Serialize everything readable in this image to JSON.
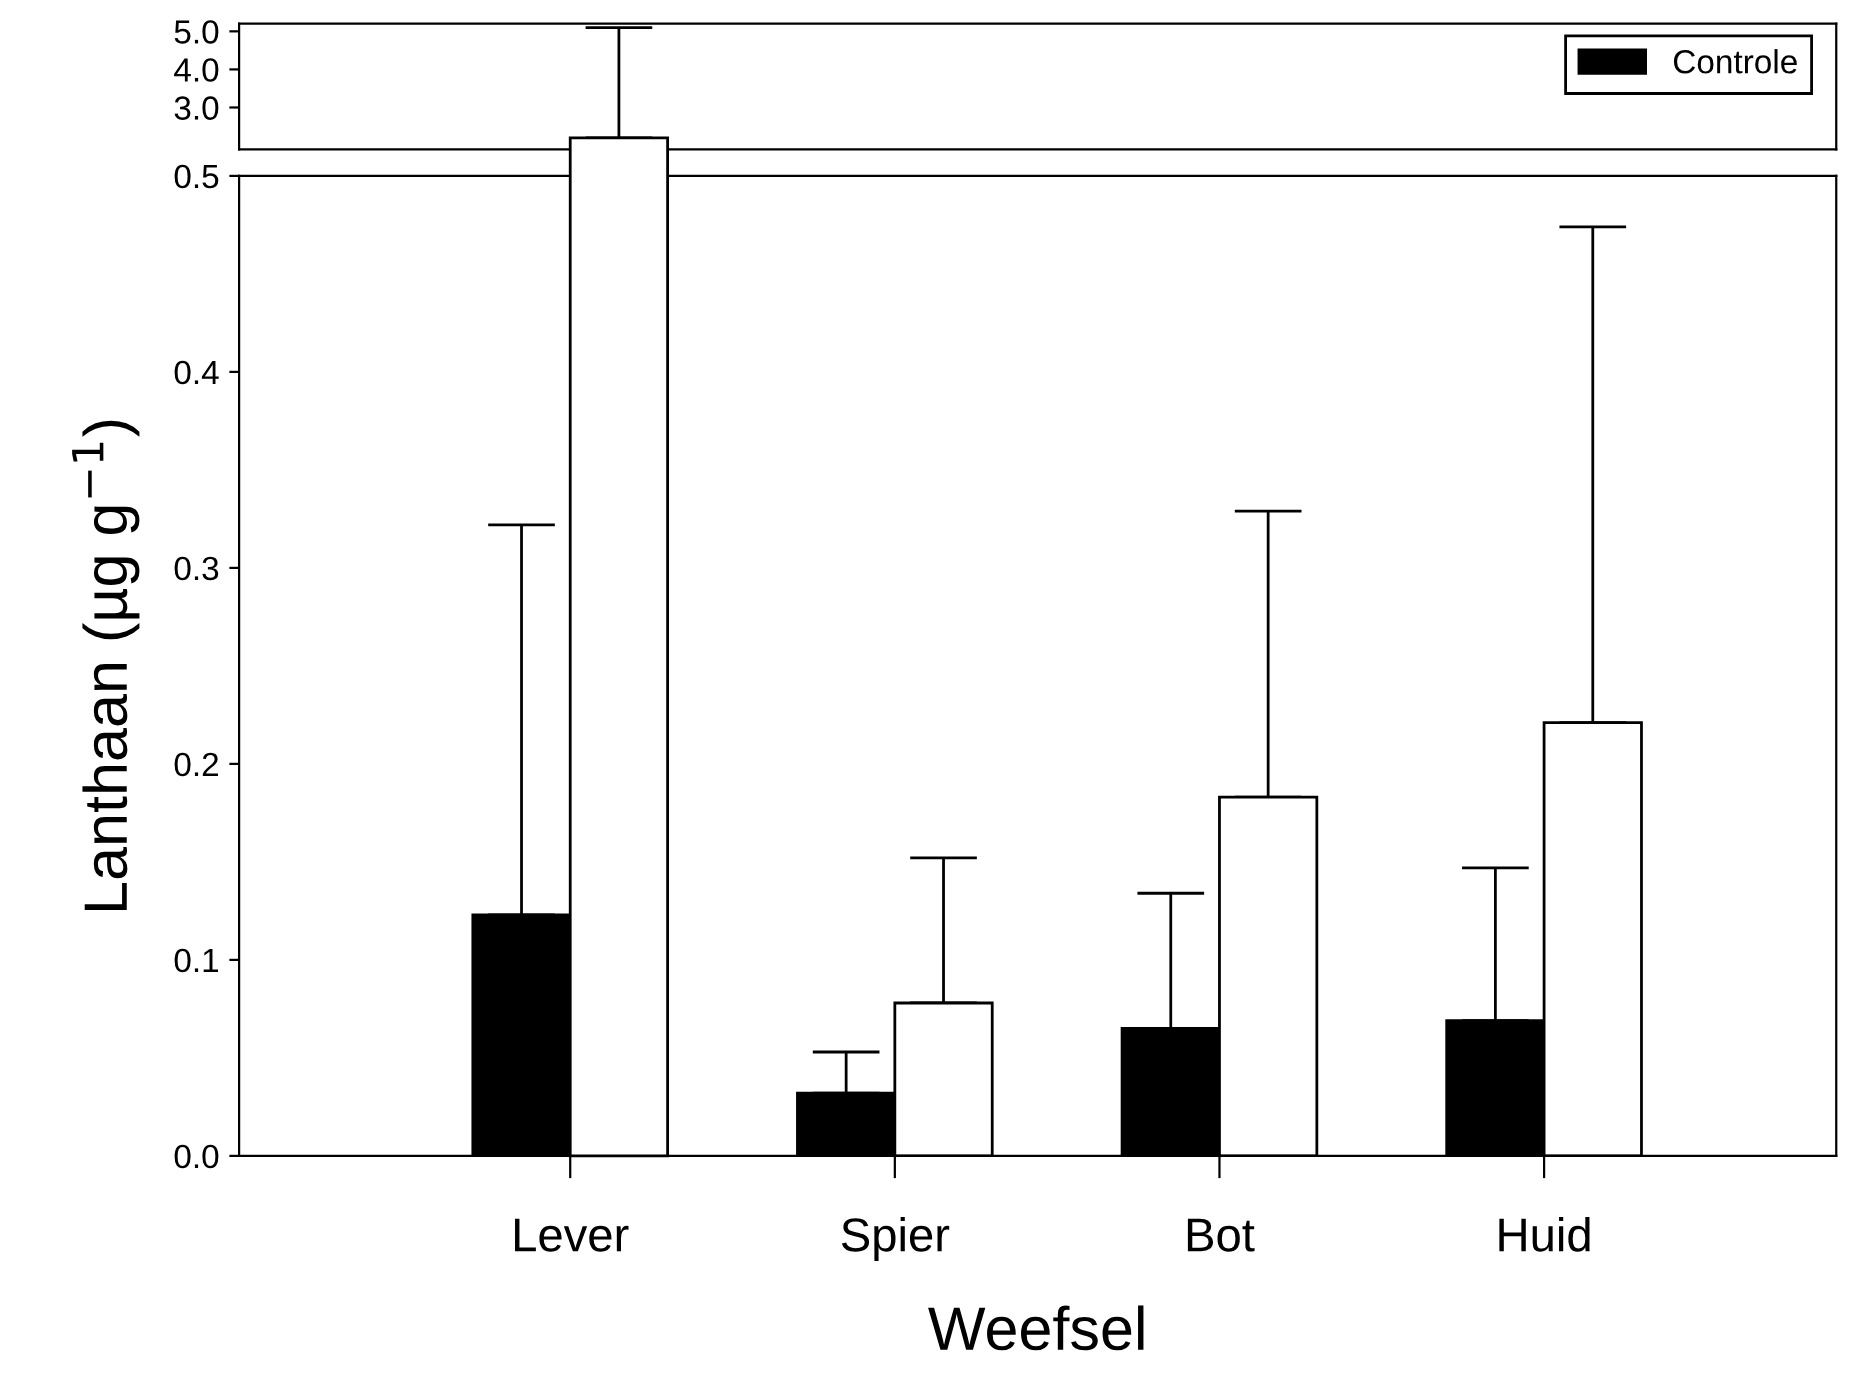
{
  "chart_data": [
    {
      "type": "bar",
      "categories": [
        null,
        null,
        null,
        null
      ],
      "ylim": [
        1.9,
        5.2
      ],
      "yticks": [
        {
          "value": 3,
          "label": "3.0"
        },
        {
          "value": 4,
          "label": "4.0"
        },
        {
          "value": 5,
          "label": "5.0"
        }
      ],
      "tick_labels": "y",
      "grid": false,
      "series": [
        {
          "color": "#ffffff",
          "values": [
            2.2,
            null,
            null,
            null
          ],
          "errors": [
            [
              2.2,
              5.1
            ],
            null,
            null,
            null
          ]
        }
      ]
    },
    {
      "type": "bar",
      "categories": [
        "Lever",
        "Spier",
        "Bot",
        "Huid"
      ],
      "ylim": [
        0,
        0.5
      ],
      "yticks": [
        {
          "value": 0,
          "label": "0.0"
        },
        {
          "value": 0.1,
          "label": "0.1"
        },
        {
          "value": 0.2,
          "label": "0.2"
        },
        {
          "value": 0.3,
          "label": "0.3"
        },
        {
          "value": 0.4,
          "label": "0.4"
        },
        {
          "value": 0.5,
          "label": "0.5"
        }
      ],
      "xlabel": "Weefsel",
      "ylabel": "Lanthaan (µg g$^{−1}$)",
      "grid": false,
      "legend": "top right",
      "series": [
        {
          "name": "Controle",
          "color": "#000000",
          "values": [
            0.123,
            0.032,
            0.065,
            0.069
          ],
          "errors": [
            [
              0.123,
              0.322
            ],
            [
              0.032,
              0.053
            ],
            [
              0.065,
              0.134
            ],
            [
              0.069,
              0.147
            ]
          ]
        },
        {
          "color": "#ffffff",
          "values": [
            null,
            0.078,
            0.183,
            0.221
          ],
          "errors": [
            null,
            [
              0.078,
              0.152
            ],
            [
              0.183,
              0.329
            ],
            [
              0.221,
              0.474
            ]
          ]
        }
      ]
    }
  ]
}
